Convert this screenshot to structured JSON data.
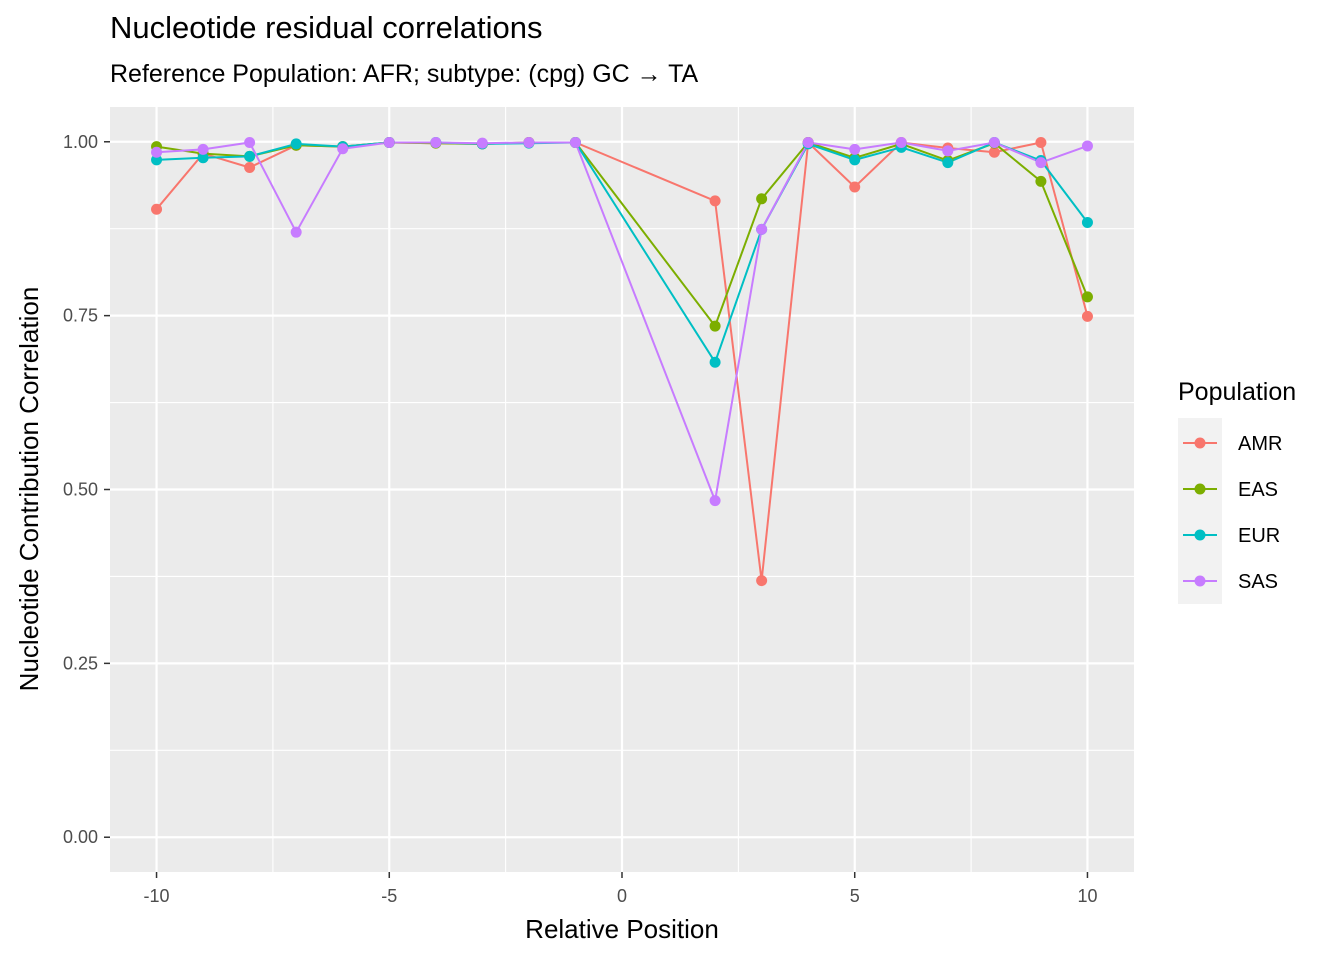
{
  "chart_data": {
    "type": "line",
    "title": "Nucleotide residual correlations",
    "subtitle": "Reference Population: AFR; subtype: (cpg) GC → TA",
    "xlabel": "Relative Position",
    "ylabel": "Nucleotide Contribution Correlation",
    "xlim": [
      -11,
      11
    ],
    "ylim": [
      -0.05,
      1.05
    ],
    "x_ticks": [
      -10,
      -5,
      0,
      5,
      10
    ],
    "x_tick_labels": [
      "-10",
      "-5",
      "0",
      "5",
      "10"
    ],
    "y_ticks": [
      0,
      0.25,
      0.5,
      0.75,
      1.0
    ],
    "y_tick_labels": [
      "0.00",
      "0.25",
      "0.50",
      "0.75",
      "1.00"
    ],
    "grid": true,
    "legend": {
      "title": "Population",
      "position": "right"
    },
    "x": [
      -10,
      -9,
      -8,
      -7,
      -6,
      -5,
      -4,
      -3,
      -2,
      -1,
      2,
      3,
      4,
      5,
      6,
      7,
      8,
      9,
      10
    ],
    "series": [
      {
        "name": "AMR",
        "color": "#F8766D",
        "values": [
          0.903,
          0.983,
          0.963,
          0.995,
          0.993,
          0.999,
          0.998,
          0.997,
          0.999,
          0.999,
          0.915,
          0.369,
          0.999,
          0.935,
          0.999,
          0.991,
          0.985,
          0.999,
          0.749
        ]
      },
      {
        "name": "EAS",
        "color": "#7CAE00",
        "values": [
          0.993,
          0.983,
          0.979,
          0.995,
          0.993,
          0.999,
          0.998,
          0.997,
          0.999,
          0.999,
          0.735,
          0.918,
          0.999,
          0.977,
          0.997,
          0.973,
          0.998,
          0.943,
          0.777
        ]
      },
      {
        "name": "EUR",
        "color": "#00BFC4",
        "values": [
          0.974,
          0.977,
          0.979,
          0.997,
          0.993,
          0.999,
          0.999,
          0.997,
          0.998,
          0.999,
          0.683,
          0.874,
          0.997,
          0.974,
          0.992,
          0.97,
          0.999,
          0.973,
          0.884
        ]
      },
      {
        "name": "SAS",
        "color": "#C77CFF",
        "values": [
          0.985,
          0.989,
          0.999,
          0.87,
          0.99,
          0.999,
          0.999,
          0.998,
          0.999,
          0.999,
          0.484,
          0.874,
          0.999,
          0.989,
          0.999,
          0.987,
          0.999,
          0.97,
          0.994
        ]
      }
    ]
  }
}
